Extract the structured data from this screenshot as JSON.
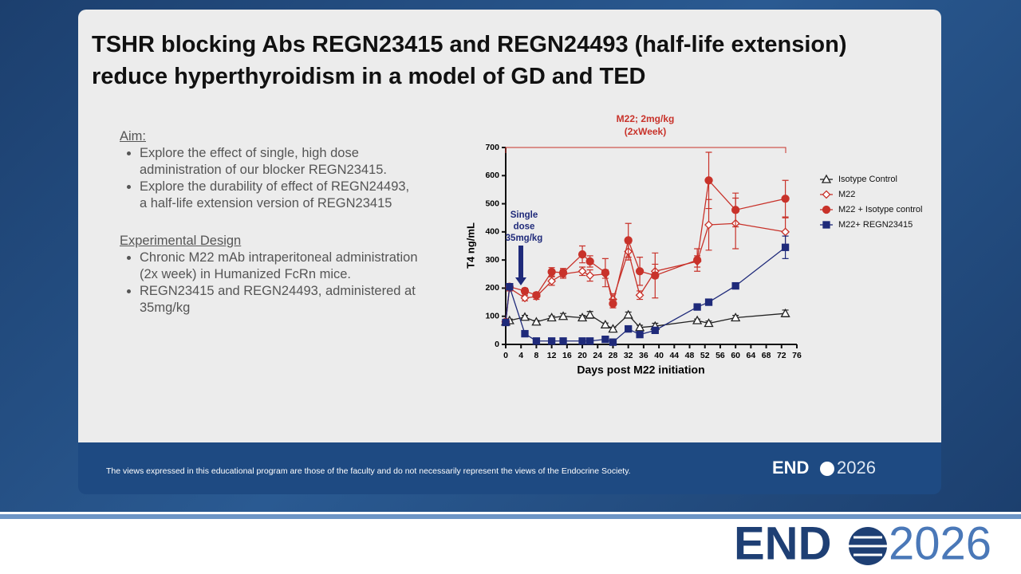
{
  "slide": {
    "title": [
      "TSHR blocking Abs REGN23415 and REGN24493 (half-life extension)",
      "reduce hyperthyroidism in a model of GD and TED"
    ],
    "aim": {
      "heading": "Aim:",
      "bullets": [
        [
          "Explore the effect of single, high dose",
          "administration of our blocker REGN23415."
        ],
        [
          "Explore the durability of effect of REGN24493,",
          "a half-life extension version of REGN23415"
        ]
      ]
    },
    "design": {
      "heading": "Experimental Design",
      "bullets": [
        [
          "Chronic M22 mAb intraperitoneal administration",
          "(2x week) in Humanized FcRn mice."
        ],
        [
          "REGN23415 and REGN24493, administered at",
          "35mg/kg"
        ]
      ]
    }
  },
  "chart_data": {
    "type": "line",
    "x_label": "Days post M22 initiation",
    "y_label": "T4 ng/mL",
    "annotations": [
      {
        "text": [
          "M22; 2mg/kg",
          "(2xWeek)"
        ],
        "color": "#c8322a"
      },
      {
        "text": [
          "Single",
          "dose",
          "35mg/kg"
        ],
        "color": "#1f2a7a"
      }
    ],
    "x": [
      0,
      1,
      5,
      8,
      12,
      15,
      20,
      22,
      26,
      28,
      32,
      35,
      39,
      50,
      53,
      60,
      73
    ],
    "series": [
      {
        "name": "Isotype Control",
        "color": "#222222",
        "marker": "triangle-open",
        "values": [
          80,
          85,
          97,
          80,
          95,
          100,
          95,
          105,
          70,
          55,
          105,
          60,
          65,
          85,
          75,
          95,
          110
        ],
        "errors": [
          8,
          5,
          6,
          5,
          6,
          10,
          8,
          12,
          6,
          6,
          10,
          8,
          10,
          5,
          8,
          8,
          12
        ]
      },
      {
        "name": "M22",
        "color": "#c8322a",
        "marker": "diamond-open",
        "values": [
          80,
          200,
          165,
          170,
          225,
          250,
          260,
          245,
          250,
          160,
          330,
          175,
          260,
          295,
          425,
          430,
          400
        ],
        "errors": [
          8,
          10,
          10,
          10,
          15,
          15,
          15,
          20,
          15,
          20,
          30,
          15,
          25,
          20,
          90,
          90,
          50
        ]
      },
      {
        "name": "M22 + Isotype control",
        "color": "#c8322a",
        "marker": "circle",
        "values": [
          80,
          205,
          190,
          175,
          258,
          255,
          320,
          295,
          255,
          145,
          370,
          260,
          245,
          300,
          583,
          478,
          518
        ],
        "errors": [
          8,
          10,
          10,
          10,
          15,
          15,
          30,
          20,
          50,
          15,
          60,
          50,
          80,
          40,
          100,
          60,
          65
        ]
      },
      {
        "name": "M22+ REGN23415",
        "color": "#1f2a7a",
        "marker": "square",
        "values": [
          78,
          205,
          38,
          12,
          12,
          12,
          12,
          12,
          18,
          8,
          55,
          35,
          50,
          133,
          150,
          208,
          345
        ],
        "errors": [
          5,
          10,
          5,
          3,
          3,
          3,
          3,
          3,
          3,
          3,
          8,
          5,
          8,
          5,
          5,
          8,
          40
        ]
      }
    ],
    "xlim": [
      0,
      76
    ],
    "xticks": [
      0,
      4,
      8,
      12,
      16,
      20,
      24,
      28,
      32,
      36,
      40,
      44,
      48,
      52,
      56,
      60,
      64,
      68,
      72,
      76
    ],
    "ylim": [
      0,
      700
    ],
    "yticks": [
      0,
      100,
      200,
      300,
      400,
      500,
      600,
      700
    ],
    "grid": false,
    "legend": "right"
  },
  "footer": {
    "disclaimer": "The views expressed in this educational program are those of the faculty and do not necessarily represent the views of the Endocrine Society.",
    "logo": {
      "text": "END",
      "year": "2026"
    }
  }
}
